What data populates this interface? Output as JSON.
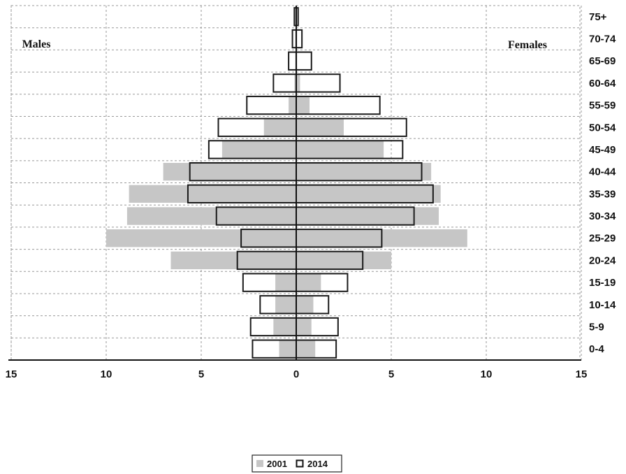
{
  "chart_data": {
    "type": "bar",
    "orientation": "horizontal",
    "subtype": "population-pyramid",
    "categories": [
      "0-4",
      "5-9",
      "10-14",
      "15-19",
      "20-24",
      "25-29",
      "30-34",
      "35-39",
      "40-44",
      "45-49",
      "50-54",
      "55-59",
      "60-64",
      "65-69",
      "70-74",
      "75+"
    ],
    "side_labels": {
      "left": "Males",
      "right": "Females"
    },
    "x_ticks": [
      15,
      10,
      5,
      0,
      5,
      10,
      15
    ],
    "xlim": [
      -15,
      15
    ],
    "grid": true,
    "legend_position": "bottom-center",
    "series": [
      {
        "name": "2001",
        "style": "filled",
        "color": "#c6c6c6",
        "males": [
          0.9,
          1.2,
          1.1,
          1.1,
          6.6,
          10.0,
          8.9,
          8.8,
          7.0,
          3.9,
          1.7,
          0.4,
          0.1,
          0.05,
          0.05,
          0.05
        ],
        "females": [
          1.0,
          0.8,
          0.9,
          1.3,
          5.0,
          9.0,
          7.5,
          7.6,
          7.1,
          4.6,
          2.5,
          0.7,
          0.2,
          0.05,
          0.05,
          0.05
        ]
      },
      {
        "name": "2014",
        "style": "outline",
        "color": "#1a1a1a",
        "males": [
          2.3,
          2.4,
          1.9,
          2.8,
          3.1,
          2.9,
          4.2,
          5.7,
          5.6,
          4.6,
          4.1,
          2.6,
          1.2,
          0.4,
          0.2,
          0.1
        ],
        "females": [
          2.1,
          2.2,
          1.7,
          2.7,
          3.5,
          4.5,
          6.2,
          7.2,
          6.6,
          5.6,
          5.8,
          4.4,
          2.3,
          0.8,
          0.3,
          0.1
        ]
      }
    ]
  }
}
